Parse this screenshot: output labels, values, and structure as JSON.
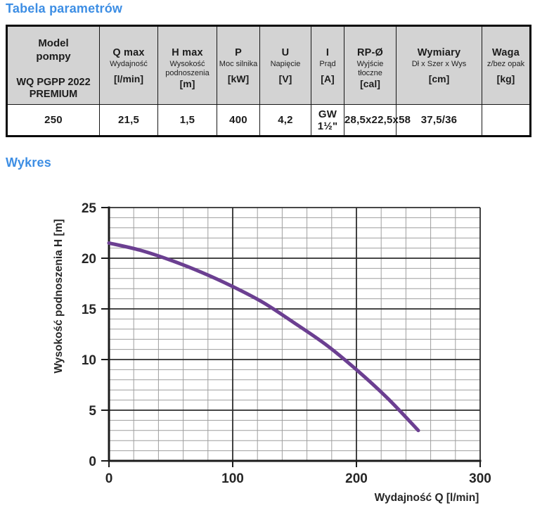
{
  "titles": {
    "table_section": "Tabela parametrów",
    "chart_section": "Wykres"
  },
  "colors": {
    "accent_blue": "#3D8EE4",
    "curve_purple": "#6B3F91",
    "grid_minor": "#9E9E9E",
    "grid_major": "#2D2D2D",
    "axis": "#1B1B1B",
    "tick_text": "#262626",
    "table_header_bg": "#D3D3D3",
    "table_border": "#0A0A0A"
  },
  "table": {
    "model_column": {
      "header": "Model\npompy",
      "value": "WQ PGPP 2022\nPREMIUM"
    },
    "columns": [
      {
        "main": "Q max",
        "sub": "Wydajność",
        "unit": "[l/min]",
        "value": "250"
      },
      {
        "main": "H max",
        "sub": "Wysokość podnoszenia",
        "unit": "[m]",
        "value": "21,5"
      },
      {
        "main": "P",
        "sub": "Moc silnika",
        "unit": "[kW]",
        "value": "1,5"
      },
      {
        "main": "U",
        "sub": "Napięcie",
        "unit": "[V]",
        "value": "400"
      },
      {
        "main": "I",
        "sub": "Prąd",
        "unit": "[A]",
        "value": "4,2"
      },
      {
        "main": "RP-Ø",
        "sub": "Wyjście tłoczne",
        "unit": "[cal]",
        "value": "GW 1½\""
      },
      {
        "main": "Wymiary",
        "sub": "Dł x Szer x Wys",
        "unit": "[cm]",
        "value": "28,5x22,5x58"
      },
      {
        "main": "Waga",
        "sub": "z/bez opak",
        "unit": "[kg]",
        "value": "37,5/36"
      }
    ]
  },
  "chart_data": {
    "type": "line",
    "title": "Wykres",
    "xlabel": "Wydajność Q [l/min]",
    "ylabel": "Wysokość podnoszenia H [m]",
    "xlim": [
      0,
      300
    ],
    "ylim": [
      0,
      25
    ],
    "x_major_ticks": [
      0,
      100,
      200,
      300
    ],
    "y_major_ticks": [
      0,
      5,
      10,
      15,
      20,
      25
    ],
    "x_minor_step": 20,
    "y_minor_step": 1,
    "grid": true,
    "legend_position": "none",
    "series": [
      {
        "name": "WQ PGPP 2022 PREMIUM pump curve",
        "color": "#6B3F91",
        "points": [
          [
            0,
            21.5
          ],
          [
            25,
            20.8
          ],
          [
            50,
            19.8
          ],
          [
            75,
            18.6
          ],
          [
            100,
            17.2
          ],
          [
            125,
            15.6
          ],
          [
            150,
            13.6
          ],
          [
            175,
            11.5
          ],
          [
            200,
            9.0
          ],
          [
            225,
            6.2
          ],
          [
            250,
            3.0
          ]
        ]
      }
    ]
  }
}
